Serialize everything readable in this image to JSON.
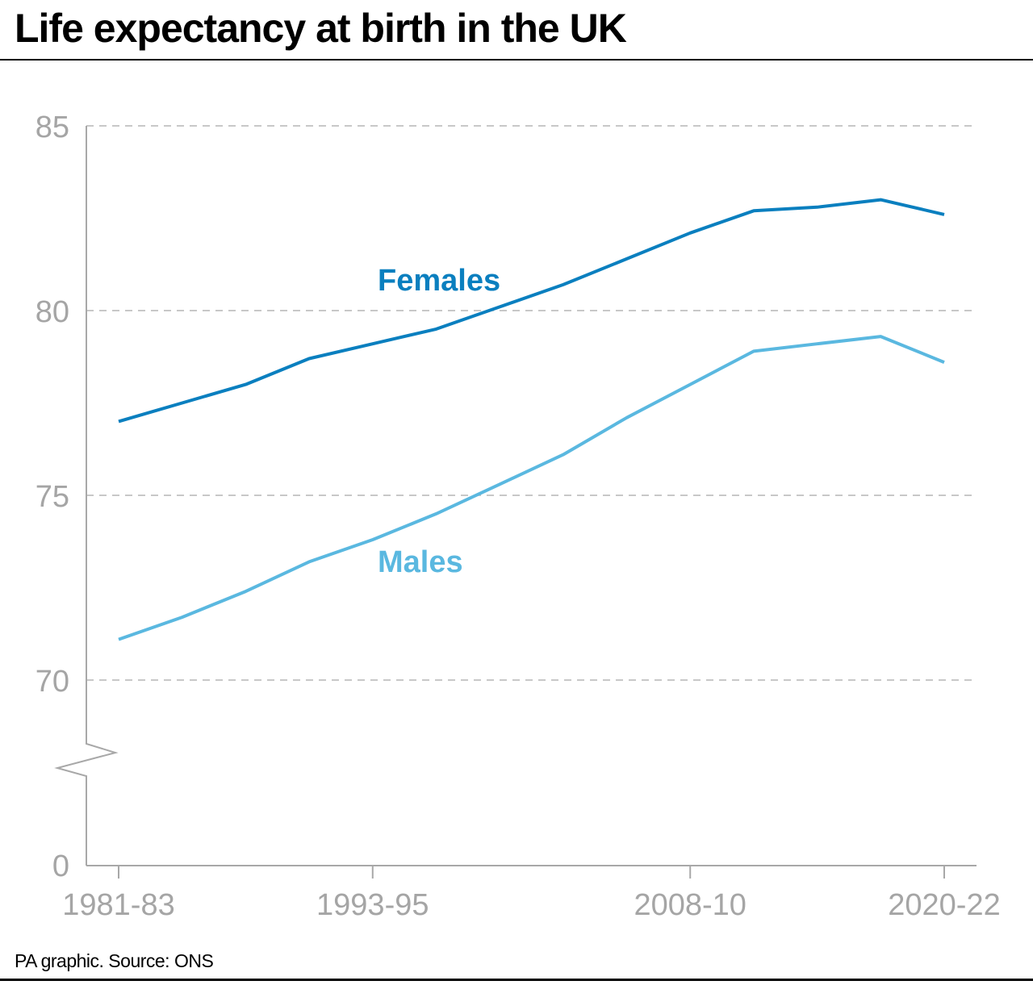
{
  "chart_data": {
    "type": "line",
    "title": "Life expectancy at birth in the UK",
    "source": "PA graphic. Source: ONS",
    "xlabel": "",
    "ylabel": "",
    "x_tick_labels": [
      "1981-83",
      "1993-95",
      "2008-10",
      "2020-22"
    ],
    "x_tick_positions": [
      1981,
      1993,
      2008,
      2020
    ],
    "x": [
      1981,
      1984,
      1987,
      1990,
      1993,
      1996,
      1999,
      2002,
      2005,
      2008,
      2011,
      2014,
      2017,
      2020
    ],
    "xlim": [
      1981,
      2020
    ],
    "y_ticks": [
      0,
      70,
      75,
      80,
      85
    ],
    "ylim": [
      70,
      85
    ],
    "y_axis_break": true,
    "grid": "horizontal dashed",
    "series": [
      {
        "name": "Females",
        "color": "#0a7fbf",
        "values": [
          77.0,
          77.5,
          78.0,
          78.7,
          79.1,
          79.5,
          80.1,
          80.7,
          81.4,
          82.1,
          82.7,
          82.8,
          83.0,
          82.6
        ]
      },
      {
        "name": "Males",
        "color": "#5ab8e0",
        "values": [
          71.1,
          71.7,
          72.4,
          73.2,
          73.8,
          74.5,
          75.3,
          76.1,
          77.1,
          78.0,
          78.9,
          79.1,
          79.3,
          78.6
        ]
      }
    ]
  }
}
